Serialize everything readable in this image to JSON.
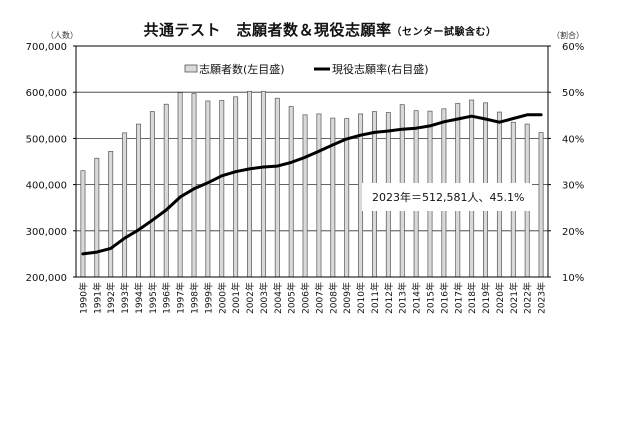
{
  "title": {
    "main": "共通テスト　志願者数＆現役志願率",
    "sub": "（センター試験含む）"
  },
  "axis_units": {
    "left": "（人数）",
    "right": "（割合）"
  },
  "legend": {
    "bar_label": "志願者数(左目盛)",
    "line_label": "現役志願率(右目盛)"
  },
  "annotation": "2023年＝512,581人、45.1%",
  "colors": {
    "bar_fill": "#d9d9d9",
    "bar_stroke": "#555555",
    "line": "#000000",
    "grid": "#333333"
  },
  "chart_data": {
    "type": "bar+line",
    "title": "共通テスト　志願者数＆現役志願率（センター試験含む）",
    "xlabel": "",
    "ylabel_left": "（人数）",
    "ylabel_right": "（割合）",
    "ylim_left": [
      200000,
      700000
    ],
    "ylim_right": [
      10,
      60
    ],
    "yticks_left": [
      "200,000",
      "300,000",
      "400,000",
      "500,000",
      "600,000",
      "700,000"
    ],
    "yticks_right": [
      "10%",
      "20%",
      "30%",
      "40%",
      "50%",
      "60%"
    ],
    "grid": true,
    "legend_position": "top-inside",
    "categories": [
      "1990年",
      "1991年",
      "1992年",
      "1993年",
      "1994年",
      "1995年",
      "1996年",
      "1997年",
      "1998年",
      "1999年",
      "2000年",
      "2001年",
      "2002年",
      "2003年",
      "2004年",
      "2005年",
      "2006年",
      "2007年",
      "2008年",
      "2009年",
      "2010年",
      "2011年",
      "2012年",
      "2013年",
      "2014年",
      "2015年",
      "2016年",
      "2017年",
      "2018年",
      "2019年",
      "2020年",
      "2021年",
      "2022年",
      "2023年"
    ],
    "series": [
      {
        "name": "志願者数(左目盛)",
        "type": "bar",
        "axis": "left",
        "values": [
          430000,
          457000,
          472000,
          512000,
          531000,
          558000,
          574000,
          599000,
          597000,
          581000,
          582000,
          590000,
          602000,
          602000,
          587000,
          569000,
          551000,
          553000,
          544000,
          543000,
          553000,
          558000,
          556000,
          573000,
          560000,
          559000,
          564000,
          576000,
          583000,
          577000,
          557000,
          535000,
          531000,
          512581
        ]
      },
      {
        "name": "現役志願率(右目盛)",
        "type": "line",
        "axis": "right",
        "values": [
          15.0,
          15.4,
          16.2,
          18.4,
          20.2,
          22.3,
          24.5,
          27.3,
          29.1,
          30.4,
          31.9,
          32.8,
          33.4,
          33.8,
          34.0,
          34.8,
          35.9,
          37.2,
          38.6,
          39.9,
          40.7,
          41.3,
          41.6,
          42.0,
          42.2,
          42.7,
          43.6,
          44.2,
          44.8,
          44.2,
          43.5,
          44.3,
          45.1,
          45.1
        ]
      }
    ],
    "annotations": [
      "2023年＝512,581人、45.1%"
    ]
  }
}
